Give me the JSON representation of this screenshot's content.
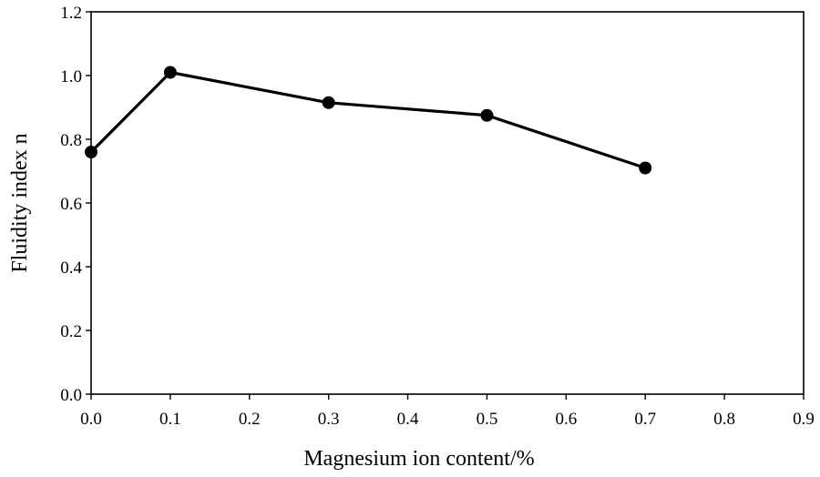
{
  "chart_data": {
    "type": "line",
    "title": "",
    "xlabel": "Magnesium ion content/%",
    "ylabel": "Fluidity index n",
    "xlim": [
      0,
      0.9
    ],
    "ylim": [
      0,
      1.2
    ],
    "x_ticks": [
      "0.0",
      "0.1",
      "0.2",
      "0.3",
      "0.4",
      "0.5",
      "0.6",
      "0.7",
      "0.8",
      "0.9"
    ],
    "y_ticks": [
      "0.0",
      "0.2",
      "0.4",
      "0.6",
      "0.8",
      "1.0",
      "1.2"
    ],
    "grid": false,
    "legend": "none",
    "series": [
      {
        "x": [
          0.0,
          0.1,
          0.3,
          0.5,
          0.7
        ],
        "y": [
          0.76,
          1.01,
          0.915,
          0.875,
          0.71
        ],
        "color": "#000000",
        "marker": "filled-circle"
      }
    ]
  }
}
